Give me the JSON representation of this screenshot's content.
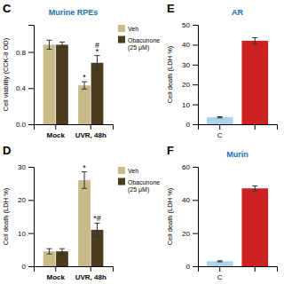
{
  "chart_data": [
    {
      "type": "bar",
      "title": "Murine RPEs",
      "ylabel": "Cell viability (CCK-8 OD)",
      "categories": [
        "Mock",
        "UVR, 48h"
      ],
      "series": [
        {
          "name": "Veh",
          "color": "#c8bb8a",
          "values": [
            0.88,
            0.43
          ],
          "errors": [
            0.05,
            0.04
          ]
        },
        {
          "name": "Obacunone\n(25 μM)",
          "color": "#4a3c1e",
          "values": [
            0.88,
            0.68
          ],
          "errors": [
            0.03,
            0.08
          ]
        }
      ],
      "ylim": [
        0,
        1.1
      ],
      "yticks": [
        {
          "value": 0,
          "label": "0.0"
        },
        0.4,
        0.8
      ],
      "legend": "upper right",
      "grid": false,
      "annotations": [
        {
          "text": "C"
        },
        {
          "text": "*",
          "series": "Veh",
          "category": "UVR, 48h"
        },
        {
          "text": "#\n*",
          "series": "Obacunone\n(25 μM)",
          "category": "UVR, 48h"
        }
      ]
    },
    {
      "type": "bar",
      "ylabel": "Cell death (LDH %)",
      "categories": [
        "Mock",
        "UVR, 48h"
      ],
      "series": [
        {
          "name": "Veh",
          "color": "#c8bb8a",
          "values": [
            4.5,
            26
          ],
          "errors": [
            0.8,
            2.5
          ]
        },
        {
          "name": "Obacunone\n(25 μM)",
          "color": "#4a3c1e",
          "values": [
            4.5,
            11
          ],
          "errors": [
            0.8,
            2.0
          ]
        }
      ],
      "ylim": [
        0,
        30
      ],
      "yticks": [
        0,
        10,
        20,
        30
      ],
      "legend": "upper left",
      "grid": false,
      "annotations": [
        {
          "text": "D"
        },
        {
          "text": "*",
          "series": "Veh",
          "category": "UVR, 48h"
        },
        {
          "text": "*#",
          "series": "Obacunone\n(25 μM)",
          "category": "UVR, 48h"
        }
      ]
    },
    {
      "type": "bar",
      "title": "AR",
      "ylabel": "Cell death (LDH %)",
      "categories": [
        "C",
        null
      ],
      "values": [
        3.5,
        42
      ],
      "errors": [
        0.3,
        1.5
      ],
      "colors": [
        "#aad4e8",
        "#cc2222"
      ],
      "ylim": [
        0,
        50
      ],
      "yticks": [
        0,
        10,
        20,
        30,
        40,
        50
      ],
      "grid": false,
      "annotations": [
        {
          "text": "E"
        }
      ]
    },
    {
      "type": "bar",
      "title": "Murin",
      "ylabel": "Cell death (LDH %)",
      "categories": [
        "C",
        null
      ],
      "values": [
        3.0,
        47
      ],
      "errors": [
        0.3,
        1.5
      ],
      "colors": [
        "#aad4e8",
        "#cc2222"
      ],
      "ylim": [
        0,
        60
      ],
      "yticks": [
        0,
        20,
        40,
        60
      ],
      "grid": false,
      "annotations": [
        {
          "text": "F"
        }
      ]
    }
  ]
}
